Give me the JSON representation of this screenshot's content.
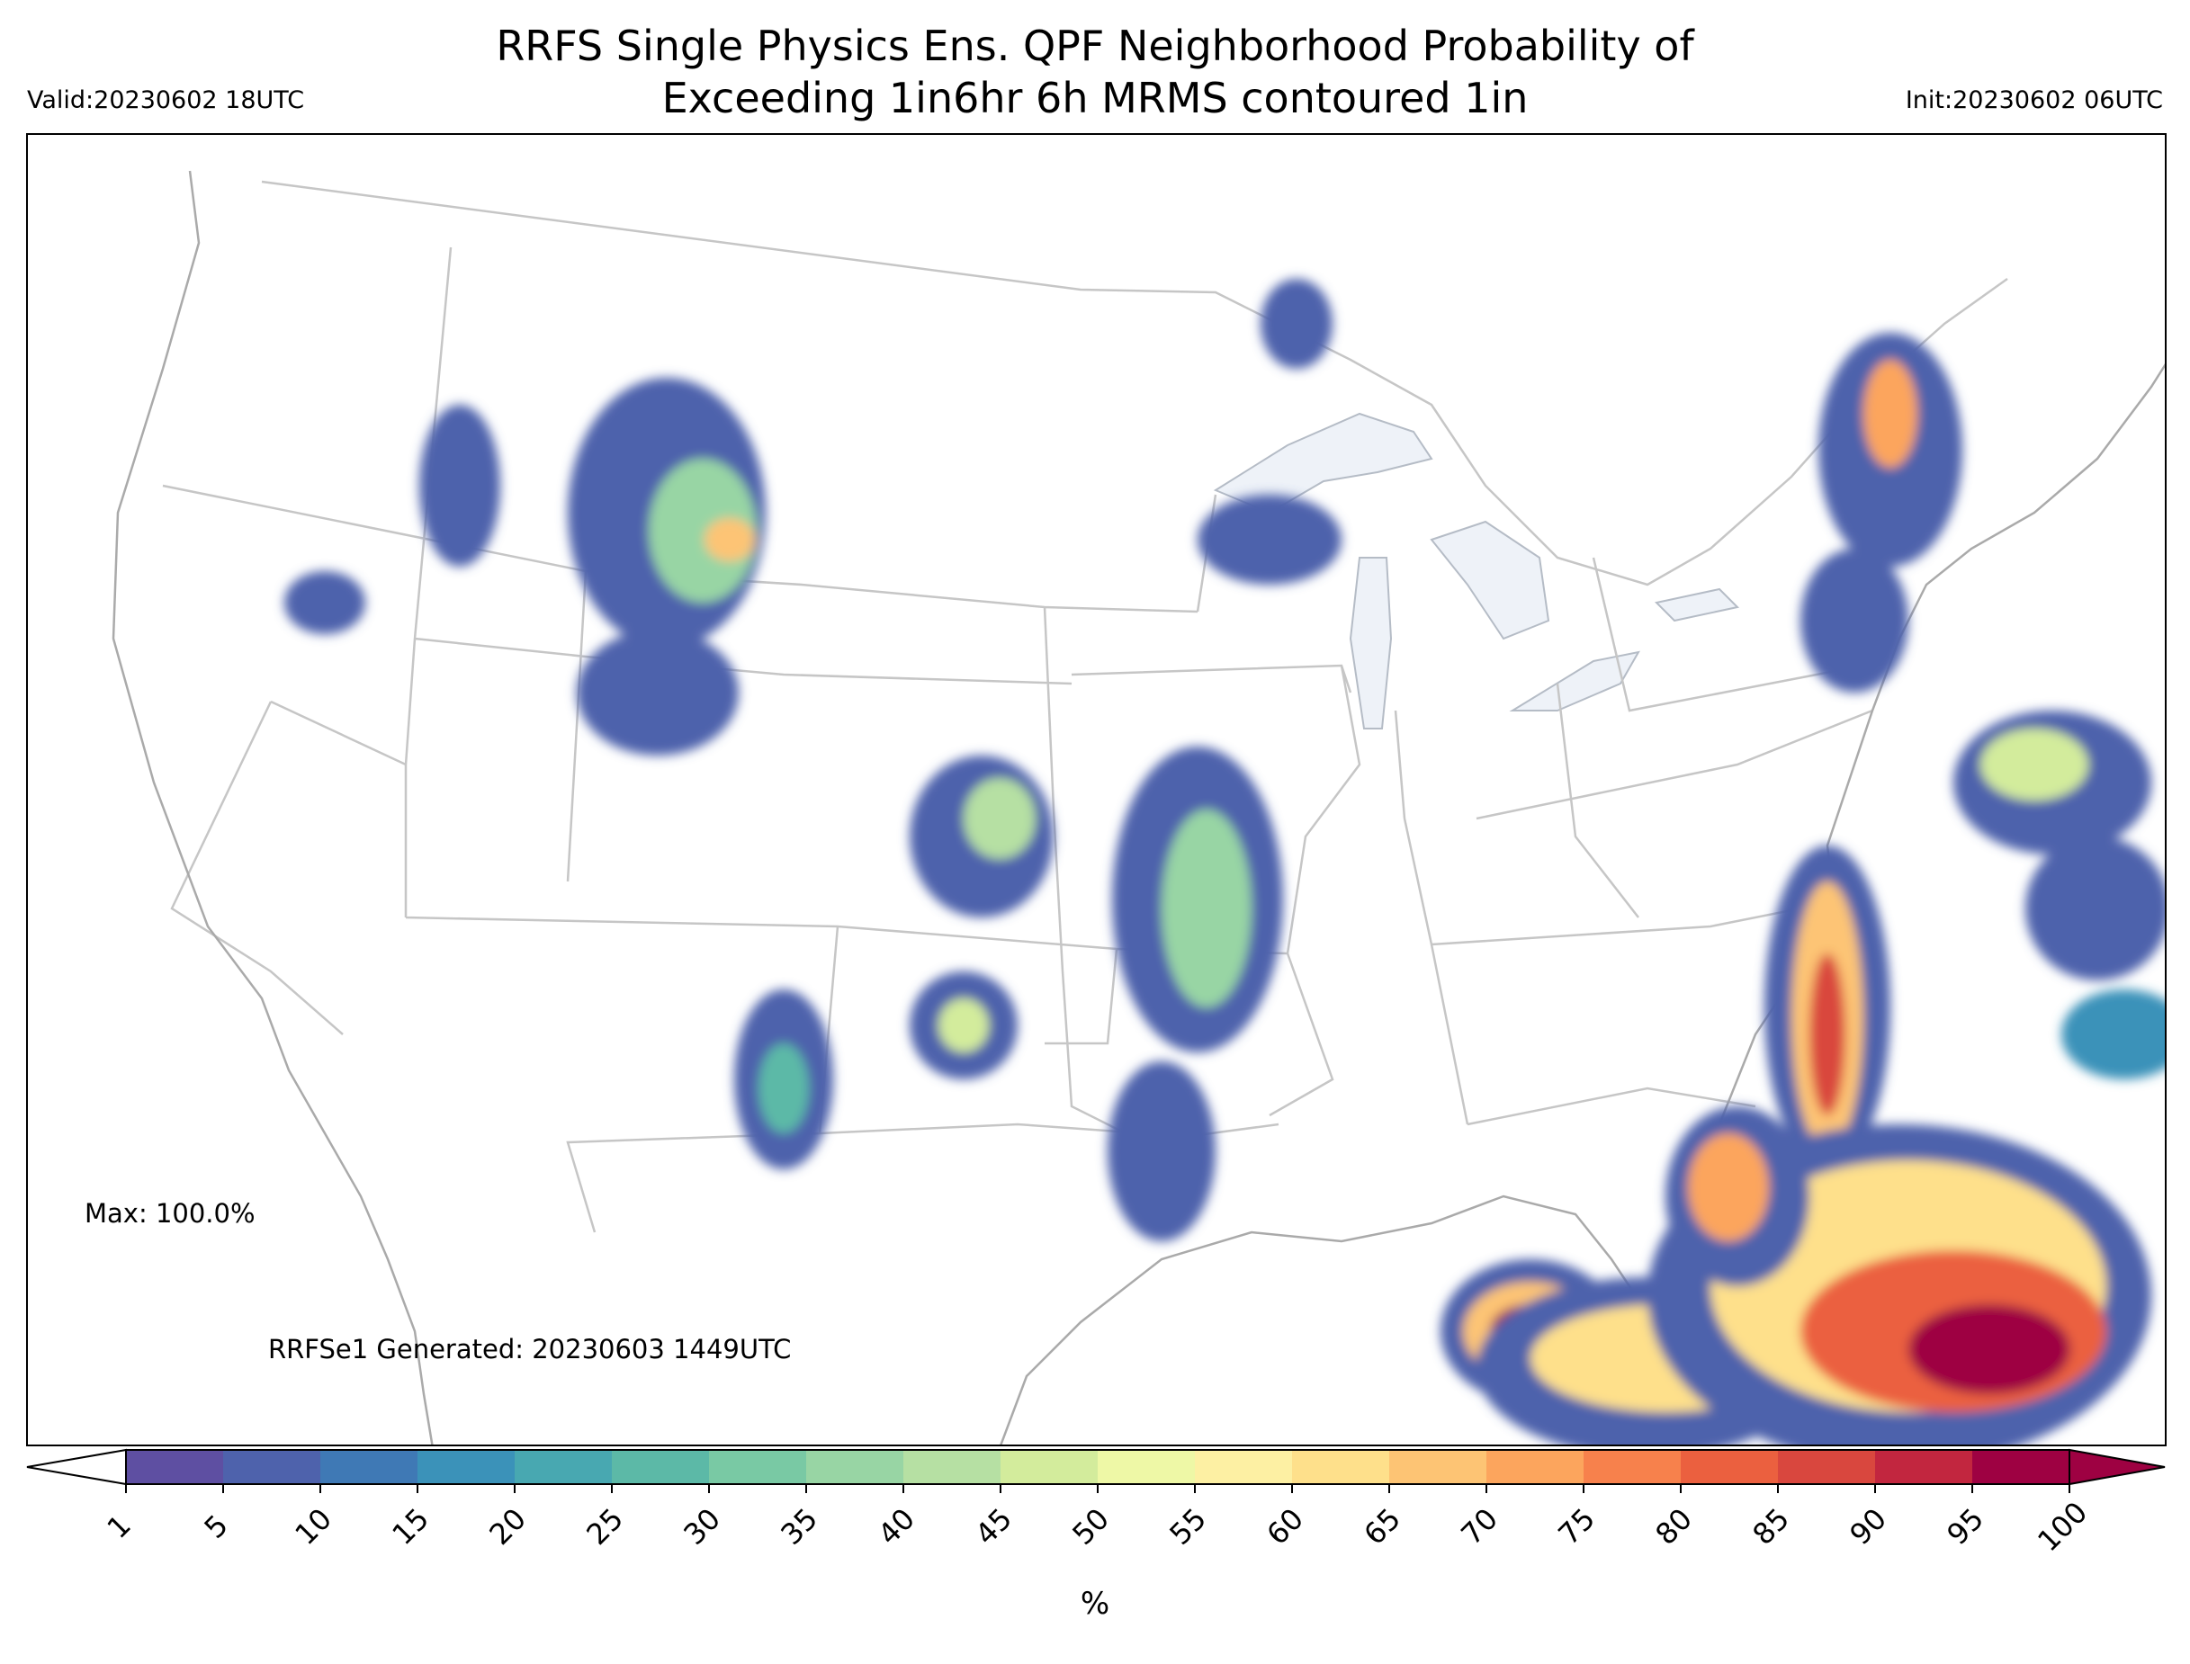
{
  "header": {
    "title": "RRFS Single Physics Ens. QPF Neighborhood Probability of\nExceeding 1in6hr 6h MRMS contoured 1in",
    "valid": "Valid:20230602 18UTC",
    "init": "Init:20230602 06UTC"
  },
  "annotations": {
    "max": "Max: 100.0%",
    "generated": "RRFSe1 Generated: 20230603 1449UTC"
  },
  "colorbar": {
    "unit_label": "%",
    "levels": [
      1,
      5,
      10,
      15,
      20,
      25,
      30,
      35,
      40,
      45,
      50,
      55,
      60,
      65,
      70,
      75,
      80,
      85,
      90,
      95,
      100
    ],
    "colors": [
      "#5e4fa2",
      "#4e62ac",
      "#3f79b5",
      "#3b92b9",
      "#48a8b1",
      "#5cb9a7",
      "#79c9a4",
      "#98d5a4",
      "#b6e0a3",
      "#d3ec9c",
      "#eef8a6",
      "#fdf0a3",
      "#fee08b",
      "#fdc474",
      "#fca55d",
      "#f7814c",
      "#eb603f",
      "#d9473e",
      "#c2263f",
      "#9e0142"
    ],
    "extend": "both"
  },
  "map": {
    "type": "probability-contour-map",
    "region": "CONUS",
    "max_probability_percent": 100.0
  }
}
